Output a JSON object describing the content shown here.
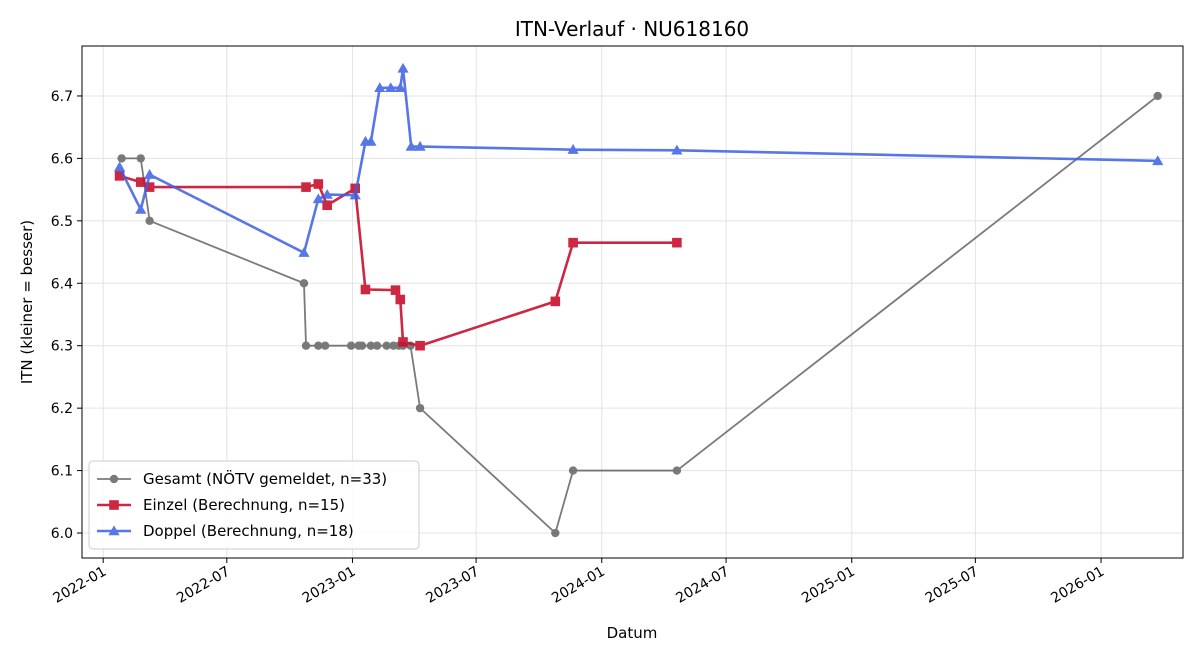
{
  "chart_data": {
    "type": "line",
    "title": "ITN-Verlauf · NU618160",
    "xlabel": "Datum",
    "ylabel": "ITN  (kleiner = besser)",
    "x_type": "date",
    "xlim": [
      "2021-12-01",
      "2026-05-01"
    ],
    "ylim": [
      5.96,
      6.78
    ],
    "x_ticks": [
      "2022-01",
      "2022-07",
      "2023-01",
      "2023-07",
      "2024-01",
      "2024-07",
      "2025-01",
      "2025-07",
      "2026-01"
    ],
    "y_ticks": [
      6.0,
      6.1,
      6.2,
      6.3,
      6.4,
      6.5,
      6.6,
      6.7
    ],
    "grid": true,
    "legend_position": "lower-left",
    "colors": {
      "Gesamt": "#555555",
      "Einzel": "#c8102e",
      "Doppel": "#3a5fe5"
    },
    "series": [
      {
        "name": "Gesamt (NÖTV gemeldet, n=33)",
        "marker": "circle",
        "x": [
          "2022-01-28",
          "2022-02-25",
          "2022-03-10",
          "2022-10-22",
          "2022-10-25",
          "2022-11-12",
          "2022-11-22",
          "2022-12-30",
          "2023-01-10",
          "2023-01-15",
          "2023-01-28",
          "2023-02-06",
          "2023-02-20",
          "2023-03-02",
          "2023-03-10",
          "2023-03-16",
          "2023-03-27",
          "2023-04-10",
          "2023-10-25",
          "2023-11-20",
          "2024-04-20",
          "2026-03-25"
        ],
        "y": [
          6.6,
          6.6,
          6.5,
          6.4,
          6.3,
          6.3,
          6.3,
          6.3,
          6.3,
          6.3,
          6.3,
          6.3,
          6.3,
          6.3,
          6.3,
          6.3,
          6.3,
          6.2,
          6.0,
          6.1,
          6.1,
          6.7
        ]
      },
      {
        "name": "Einzel (Berechnung, n=15)",
        "marker": "square",
        "x": [
          "2022-01-25",
          "2022-02-25",
          "2022-03-10",
          "2022-10-25",
          "2022-11-12",
          "2022-11-25",
          "2023-01-05",
          "2023-01-20",
          "2023-03-05",
          "2023-03-12",
          "2023-03-16",
          "2023-04-10",
          "2023-10-25",
          "2023-11-20",
          "2024-04-20"
        ],
        "y": [
          6.572,
          6.562,
          6.554,
          6.554,
          6.559,
          6.525,
          6.552,
          6.39,
          6.389,
          6.374,
          6.306,
          6.3,
          6.371,
          6.465,
          6.465
        ]
      },
      {
        "name": "Doppel (Berechnung, n=18)",
        "marker": "triangle",
        "x": [
          "2022-01-25",
          "2022-02-25",
          "2022-03-10",
          "2022-10-22",
          "2022-11-12",
          "2022-11-25",
          "2023-01-05",
          "2023-01-20",
          "2023-01-28",
          "2023-02-10",
          "2023-02-26",
          "2023-03-12",
          "2023-03-16",
          "2023-03-28",
          "2023-04-10",
          "2023-11-20",
          "2024-04-20",
          "2026-03-25"
        ],
        "y": [
          6.586,
          6.518,
          6.574,
          6.449,
          6.535,
          6.542,
          6.541,
          6.627,
          6.627,
          6.713,
          6.713,
          6.713,
          6.744,
          6.619,
          6.619,
          6.614,
          6.613,
          6.596
        ]
      }
    ]
  }
}
